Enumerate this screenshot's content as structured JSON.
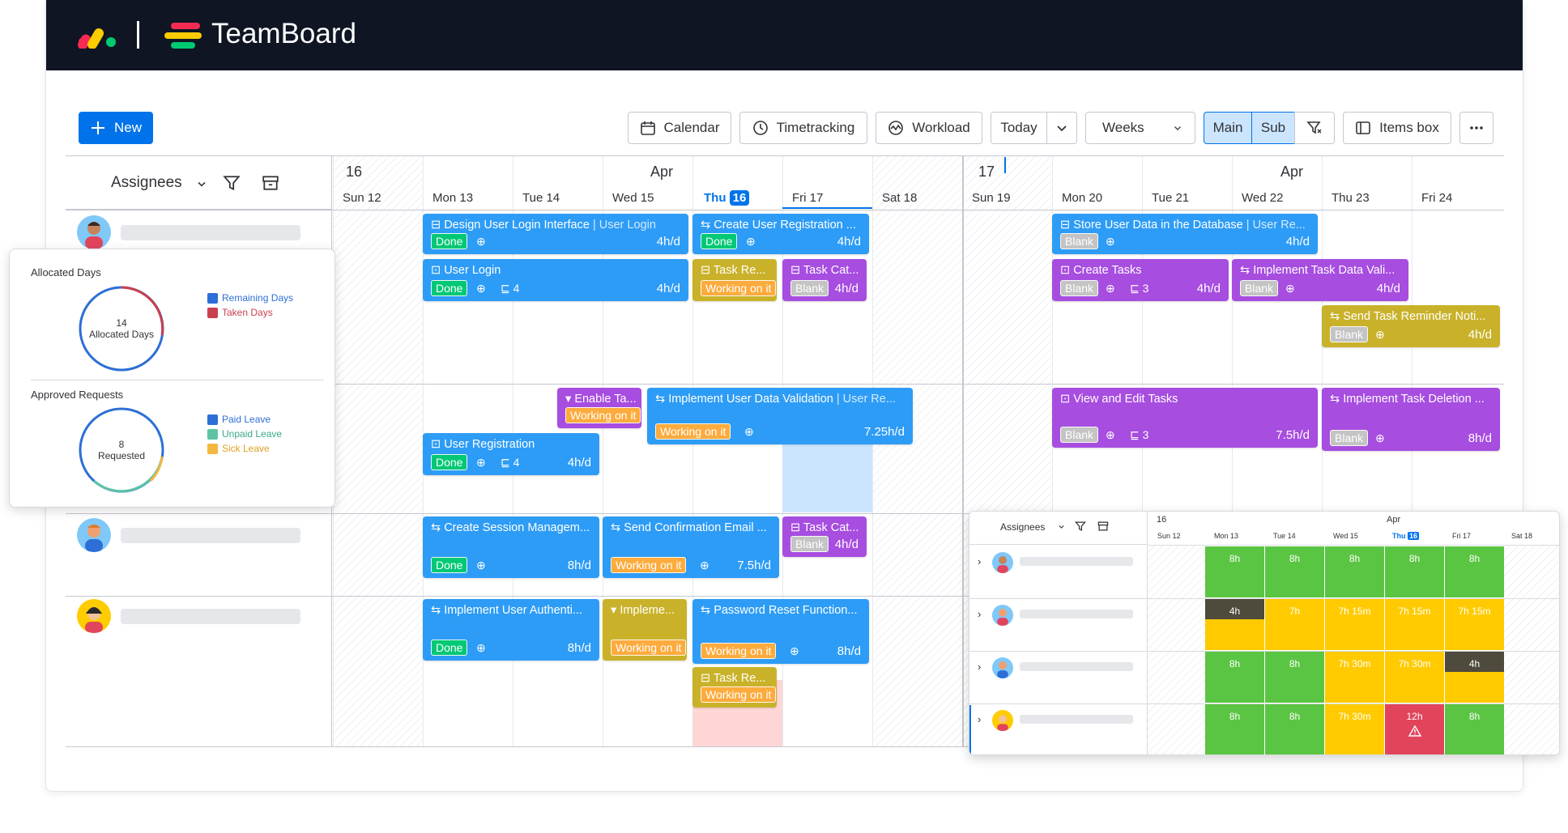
{
  "app": {
    "brand": "TeamBoard"
  },
  "toolbar": {
    "new": "New",
    "calendar": "Calendar",
    "timetracking": "Timetracking",
    "workload": "Workload",
    "today": "Today",
    "weeks": "Weeks",
    "main": "Main",
    "sub": "Sub",
    "items_box": "Items box"
  },
  "left": {
    "assignees": "Assignees"
  },
  "timeline": {
    "week1_num": "16",
    "week2_num": "17",
    "month": "Apr",
    "days": [
      "Sun 12",
      "Mon 13",
      "Tue 14",
      "Wed 15",
      "Thu",
      "Fri 17",
      "Sat 18",
      "Sun 19",
      "Mon 20",
      "Tue 21",
      "Wed 22",
      "Thu 23",
      "Fri 24"
    ],
    "today_num": "16"
  },
  "cards": [
    {
      "title": "Design User Login Interface",
      "sub": " | User Login",
      "badge": "Done",
      "hours": "4h/d"
    },
    {
      "title": "Create User Registration ...",
      "badge": "Done",
      "hours": "4h/d"
    },
    {
      "title": "User Login",
      "badge": "Done",
      "sub_count": "4",
      "hours": "4h/d"
    },
    {
      "title": "Task Re...",
      "badge": "Working on it"
    },
    {
      "title": "Task Cat...",
      "badge": "Blank",
      "hours": "4h/d"
    },
    {
      "title": "Store User Data in the Database",
      "sub": " | User Re...",
      "badge": "Blank",
      "hours": "4h/d"
    },
    {
      "title": "Create Tasks",
      "badge": "Blank",
      "sub_count": "3",
      "hours": "4h/d"
    },
    {
      "title": "Implement Task Data Vali...",
      "badge": "Blank",
      "hours": "4h/d"
    },
    {
      "title": "Send Task Reminder Noti...",
      "badge": "Blank",
      "hours": "4h/d"
    },
    {
      "title": "Enable Ta...",
      "badge": "Working on it"
    },
    {
      "title": "Implement User Data Validation",
      "sub": " | User Re...",
      "badge": "Working on it",
      "hours": "7.25h/d"
    },
    {
      "title": "User Registration",
      "badge": "Done",
      "sub_count": "4",
      "hours": "4h/d"
    },
    {
      "title": "View and Edit Tasks",
      "badge": "Blank",
      "sub_count": "3",
      "hours": "7.5h/d"
    },
    {
      "title": "Implement Task Deletion ...",
      "badge": "Blank",
      "hours": "8h/d"
    },
    {
      "title": "Create Session Managem...",
      "badge": "Done",
      "hours": "8h/d"
    },
    {
      "title": "Send Confirmation Email ...",
      "badge": "Working on it",
      "hours": "7.5h/d"
    },
    {
      "title": "Task Cat...",
      "badge": "Blank",
      "hours": "4h/d"
    },
    {
      "title": "Implement User Authenti...",
      "badge": "Done",
      "hours": "8h/d"
    },
    {
      "title": "Impleme...",
      "badge": "Working on it"
    },
    {
      "title": "Password Reset Function...",
      "badge": "Working on it",
      "hours": "8h/d"
    },
    {
      "title": "Task Re...",
      "badge": "Working on it"
    }
  ],
  "panel_left": {
    "allocated_title": "Allocated Days",
    "allocated_num": "14",
    "allocated_label": "Allocated Days",
    "legend1": [
      "Remaining Days",
      "Taken Days"
    ],
    "approved_title": "Approved Requests",
    "requested_num": "8",
    "requested_label": "Requested",
    "legend2": [
      "Paid Leave",
      "Unpaid Leave",
      "Sick Leave"
    ]
  },
  "panel_right": {
    "assignees": "Assignees",
    "week_num": "16",
    "month": "Apr",
    "days": [
      "Sun 12",
      "Mon 13",
      "Tue 14",
      "Wed 15",
      "Thu",
      "Fri 17",
      "Sat 18"
    ],
    "today_num": "16",
    "rows": [
      [
        "8h",
        "8h",
        "8h",
        "8h",
        "8h"
      ],
      [
        "4h",
        "7h",
        "7h 15m",
        "7h 15m",
        "7h 15m"
      ],
      [
        "8h",
        "8h",
        "7h 30m",
        "7h 30m",
        "4h"
      ],
      [
        "8h",
        "8h",
        "7h 30m",
        "12h",
        "8h"
      ]
    ]
  },
  "colors": {
    "accent": "#0073ea",
    "done": "#00c875",
    "working": "#fdab3d",
    "card_blue": "#2d9cf6",
    "card_purple": "#a74de0",
    "card_olive": "#c9b22a",
    "load_green": "#5ac542",
    "load_yellow": "#ffcb00",
    "load_red": "#e2445c"
  }
}
